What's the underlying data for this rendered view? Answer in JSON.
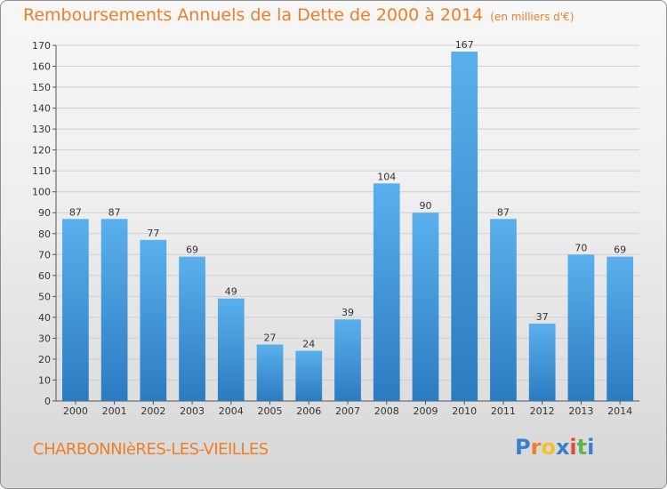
{
  "header": {
    "title": "Remboursements Annuels de la Dette de 2000 à 2014",
    "subtitle": "(en milliers d'€)"
  },
  "footer": {
    "commune": "CHARBONNIèRES-LES-VIEILLES",
    "logo_letters": [
      "P",
      "r",
      "o",
      "x",
      "i",
      "t",
      "i"
    ]
  },
  "colors": {
    "title": "#ef7f26",
    "bar_top": "#5ab0ec",
    "bar_bottom": "#2b7bc1",
    "logo": [
      "#3a7fc9",
      "#ef7f26",
      "#f2c22e",
      "#3a7fc9",
      "#e8483b",
      "#5cb84a",
      "#3a7fc9"
    ]
  },
  "chart_data": {
    "type": "bar",
    "categories": [
      "2000",
      "2001",
      "2002",
      "2003",
      "2004",
      "2005",
      "2006",
      "2007",
      "2008",
      "2009",
      "2010",
      "2011",
      "2012",
      "2013",
      "2014"
    ],
    "values": [
      87,
      87,
      77,
      69,
      49,
      27,
      24,
      39,
      104,
      90,
      167,
      87,
      37,
      70,
      69
    ],
    "ylim": [
      0,
      170
    ],
    "ytick_step": 10,
    "grid": "horizontal",
    "data_labels": true
  }
}
